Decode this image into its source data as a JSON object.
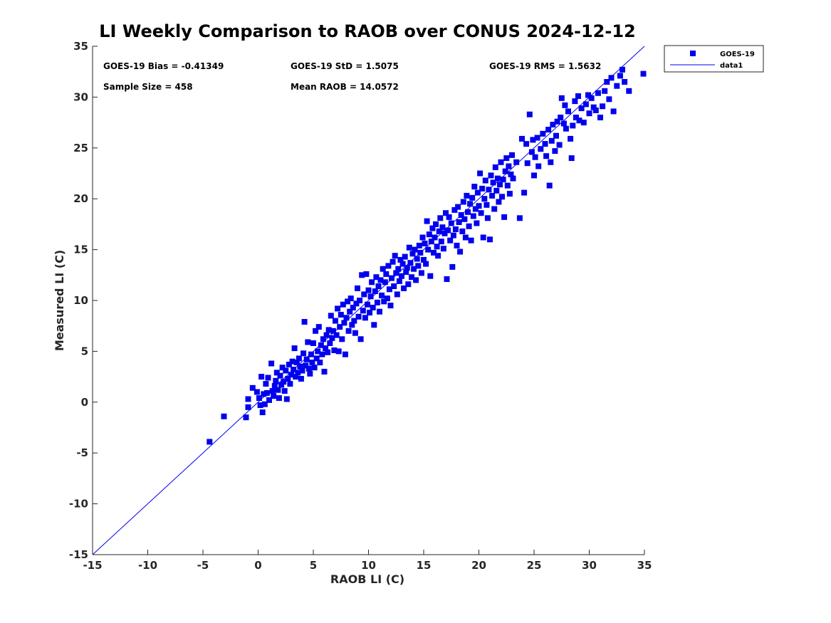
{
  "chart_data": {
    "type": "scatter",
    "title": "LI Weekly Comparison to RAOB over CONUS 2024-12-12",
    "xlabel": "RAOB LI (C)",
    "ylabel": "Measured LI (C)",
    "xlim": [
      -15,
      35
    ],
    "ylim": [
      -15,
      35
    ],
    "xticks": [
      -15,
      -10,
      -5,
      0,
      5,
      10,
      15,
      20,
      25,
      30,
      35
    ],
    "yticks": [
      -15,
      -10,
      -5,
      0,
      5,
      10,
      15,
      20,
      25,
      30,
      35
    ],
    "grid": false,
    "legend_position": "outside-top-right",
    "stats": {
      "bias": "GOES-19 Bias = -0.41349",
      "std": "GOES-19 StD = 1.5075",
      "rms": "GOES-19 RMS = 1.5632",
      "sample_size": "Sample Size = 458",
      "mean_raob": "Mean RAOB = 14.0572"
    },
    "series": [
      {
        "name": "GOES-19",
        "marker": "square",
        "color": "#0000ee",
        "points": [
          [
            -4.4,
            -3.9
          ],
          [
            -3.1,
            -1.4
          ],
          [
            -1.1,
            -1.5
          ],
          [
            -0.9,
            -0.5
          ],
          [
            -0.9,
            0.3
          ],
          [
            -0.5,
            1.4
          ],
          [
            -0.1,
            1.0
          ],
          [
            0.1,
            0.4
          ],
          [
            0.2,
            -0.3
          ],
          [
            0.3,
            2.5
          ],
          [
            0.4,
            -1.0
          ],
          [
            0.5,
            0.8
          ],
          [
            0.6,
            -0.2
          ],
          [
            0.7,
            1.8
          ],
          [
            0.8,
            0.9
          ],
          [
            0.9,
            2.4
          ],
          [
            1.0,
            0.2
          ],
          [
            1.2,
            3.8
          ],
          [
            1.3,
            1.1
          ],
          [
            1.4,
            0.6
          ],
          [
            1.5,
            1.6
          ],
          [
            1.6,
            2.1
          ],
          [
            1.7,
            2.9
          ],
          [
            1.8,
            1.2
          ],
          [
            1.9,
            0.4
          ],
          [
            2.0,
            2.6
          ],
          [
            2.1,
            1.7
          ],
          [
            2.2,
            3.4
          ],
          [
            2.3,
            2.0
          ],
          [
            2.4,
            1.1
          ],
          [
            2.5,
            3.1
          ],
          [
            2.6,
            0.3
          ],
          [
            2.7,
            2.3
          ],
          [
            2.8,
            3.7
          ],
          [
            2.9,
            1.8
          ],
          [
            3.0,
            2.7
          ],
          [
            3.1,
            4.0
          ],
          [
            3.2,
            3.2
          ],
          [
            3.3,
            5.3
          ],
          [
            3.4,
            2.5
          ],
          [
            3.5,
            3.9
          ],
          [
            3.6,
            2.9
          ],
          [
            3.7,
            4.3
          ],
          [
            3.8,
            3.5
          ],
          [
            3.9,
            2.3
          ],
          [
            4.0,
            3.1
          ],
          [
            4.1,
            4.8
          ],
          [
            4.2,
            7.9
          ],
          [
            4.3,
            3.6
          ],
          [
            4.4,
            4.2
          ],
          [
            4.5,
            5.9
          ],
          [
            4.6,
            3.3
          ],
          [
            4.7,
            2.8
          ],
          [
            4.8,
            4.7
          ],
          [
            4.9,
            3.9
          ],
          [
            5.0,
            5.8
          ],
          [
            5.1,
            3.4
          ],
          [
            5.2,
            7.0
          ],
          [
            5.3,
            4.3
          ],
          [
            5.4,
            5.0
          ],
          [
            5.5,
            7.4
          ],
          [
            5.6,
            3.9
          ],
          [
            5.7,
            5.6
          ],
          [
            5.8,
            4.7
          ],
          [
            5.9,
            6.2
          ],
          [
            6.0,
            3.0
          ],
          [
            6.1,
            5.3
          ],
          [
            6.2,
            6.6
          ],
          [
            6.3,
            4.9
          ],
          [
            6.4,
            7.1
          ],
          [
            6.5,
            5.8
          ],
          [
            6.6,
            8.5
          ],
          [
            6.7,
            6.3
          ],
          [
            6.8,
            7.0
          ],
          [
            6.9,
            5.1
          ],
          [
            7.0,
            8.0
          ],
          [
            7.1,
            6.6
          ],
          [
            7.2,
            9.2
          ],
          [
            7.3,
            5.0
          ],
          [
            7.4,
            7.4
          ],
          [
            7.5,
            8.6
          ],
          [
            7.6,
            6.2
          ],
          [
            7.7,
            9.6
          ],
          [
            7.8,
            7.8
          ],
          [
            7.9,
            4.7
          ],
          [
            8.0,
            8.3
          ],
          [
            8.1,
            9.9
          ],
          [
            8.2,
            7.0
          ],
          [
            8.3,
            8.9
          ],
          [
            8.4,
            10.2
          ],
          [
            8.5,
            7.6
          ],
          [
            8.6,
            9.3
          ],
          [
            8.7,
            8.0
          ],
          [
            8.8,
            6.8
          ],
          [
            8.9,
            9.7
          ],
          [
            9.0,
            11.2
          ],
          [
            9.1,
            8.4
          ],
          [
            9.2,
            10.0
          ],
          [
            9.3,
            6.2
          ],
          [
            9.4,
            12.5
          ],
          [
            9.5,
            9.0
          ],
          [
            9.6,
            10.6
          ],
          [
            9.7,
            8.3
          ],
          [
            9.8,
            12.6
          ],
          [
            9.9,
            9.6
          ],
          [
            10.0,
            11.0
          ],
          [
            10.1,
            8.8
          ],
          [
            10.2,
            10.4
          ],
          [
            10.3,
            11.8
          ],
          [
            10.4,
            9.3
          ],
          [
            10.5,
            7.6
          ],
          [
            10.6,
            10.9
          ],
          [
            10.7,
            12.3
          ],
          [
            10.8,
            9.8
          ],
          [
            10.9,
            11.4
          ],
          [
            11.0,
            8.9
          ],
          [
            11.1,
            12.0
          ],
          [
            11.2,
            10.5
          ],
          [
            11.3,
            13.1
          ],
          [
            11.4,
            9.9
          ],
          [
            11.5,
            11.8
          ],
          [
            11.6,
            12.6
          ],
          [
            11.7,
            10.2
          ],
          [
            11.8,
            13.4
          ],
          [
            11.9,
            11.1
          ],
          [
            12.0,
            9.5
          ],
          [
            12.1,
            12.2
          ],
          [
            12.2,
            13.8
          ],
          [
            12.3,
            11.4
          ],
          [
            12.4,
            14.4
          ],
          [
            12.5,
            12.7
          ],
          [
            12.6,
            10.6
          ],
          [
            12.7,
            13.1
          ],
          [
            12.8,
            11.9
          ],
          [
            12.9,
            14.0
          ],
          [
            13.0,
            12.4
          ],
          [
            13.1,
            13.6
          ],
          [
            13.2,
            11.2
          ],
          [
            13.3,
            14.3
          ],
          [
            13.4,
            12.8
          ],
          [
            13.5,
            13.2
          ],
          [
            13.6,
            11.6
          ],
          [
            13.7,
            15.2
          ],
          [
            13.8,
            13.7
          ],
          [
            13.9,
            12.3
          ],
          [
            14.0,
            14.6
          ],
          [
            14.1,
            13.1
          ],
          [
            14.2,
            15.0
          ],
          [
            14.3,
            12.0
          ],
          [
            14.4,
            14.1
          ],
          [
            14.5,
            13.4
          ],
          [
            14.6,
            15.4
          ],
          [
            14.7,
            14.7
          ],
          [
            14.8,
            12.7
          ],
          [
            14.9,
            16.2
          ],
          [
            15.0,
            14.0
          ],
          [
            15.1,
            15.6
          ],
          [
            15.2,
            13.6
          ],
          [
            15.3,
            17.8
          ],
          [
            15.4,
            15.0
          ],
          [
            15.5,
            16.5
          ],
          [
            15.6,
            12.4
          ],
          [
            15.7,
            15.8
          ],
          [
            15.8,
            17.1
          ],
          [
            15.9,
            14.7
          ],
          [
            16.0,
            16.2
          ],
          [
            16.1,
            17.5
          ],
          [
            16.2,
            15.3
          ],
          [
            16.3,
            14.4
          ],
          [
            16.4,
            16.8
          ],
          [
            16.5,
            18.1
          ],
          [
            16.6,
            15.8
          ],
          [
            16.7,
            17.2
          ],
          [
            16.8,
            15.1
          ],
          [
            16.9,
            16.6
          ],
          [
            17.0,
            18.6
          ],
          [
            17.1,
            12.1
          ],
          [
            17.2,
            16.9
          ],
          [
            17.3,
            18.2
          ],
          [
            17.4,
            15.9
          ],
          [
            17.5,
            17.6
          ],
          [
            17.6,
            13.3
          ],
          [
            17.7,
            16.4
          ],
          [
            17.8,
            18.9
          ],
          [
            17.9,
            17.0
          ],
          [
            18.0,
            15.4
          ],
          [
            18.1,
            19.2
          ],
          [
            18.2,
            17.7
          ],
          [
            18.3,
            14.8
          ],
          [
            18.4,
            18.4
          ],
          [
            18.5,
            16.8
          ],
          [
            18.6,
            19.7
          ],
          [
            18.7,
            18.0
          ],
          [
            18.8,
            16.2
          ],
          [
            18.9,
            20.3
          ],
          [
            19.0,
            18.7
          ],
          [
            19.1,
            17.3
          ],
          [
            19.2,
            19.5
          ],
          [
            19.3,
            15.9
          ],
          [
            19.4,
            20.1
          ],
          [
            19.5,
            18.3
          ],
          [
            19.6,
            21.2
          ],
          [
            19.7,
            19.0
          ],
          [
            19.8,
            17.6
          ],
          [
            19.9,
            20.6
          ],
          [
            20.0,
            19.3
          ],
          [
            20.1,
            22.5
          ],
          [
            20.2,
            18.6
          ],
          [
            20.3,
            21.0
          ],
          [
            20.4,
            16.2
          ],
          [
            20.5,
            20.0
          ],
          [
            20.6,
            21.8
          ],
          [
            20.7,
            19.4
          ],
          [
            20.8,
            18.1
          ],
          [
            20.9,
            20.9
          ],
          [
            21.0,
            16.0
          ],
          [
            21.1,
            22.3
          ],
          [
            21.2,
            20.3
          ],
          [
            21.3,
            21.6
          ],
          [
            21.4,
            19.0
          ],
          [
            21.5,
            23.1
          ],
          [
            21.6,
            20.8
          ],
          [
            21.7,
            22.0
          ],
          [
            21.8,
            19.7
          ],
          [
            21.9,
            21.4
          ],
          [
            22.0,
            23.6
          ],
          [
            22.1,
            20.2
          ],
          [
            22.2,
            21.9
          ],
          [
            22.3,
            18.2
          ],
          [
            22.4,
            22.7
          ],
          [
            22.5,
            24.0
          ],
          [
            22.6,
            21.3
          ],
          [
            22.7,
            23.2
          ],
          [
            22.8,
            20.5
          ],
          [
            22.9,
            22.4
          ],
          [
            23.0,
            24.3
          ],
          [
            23.1,
            22.0
          ],
          [
            23.4,
            23.6
          ],
          [
            23.7,
            18.1
          ],
          [
            23.9,
            25.9
          ],
          [
            24.1,
            20.6
          ],
          [
            24.3,
            25.4
          ],
          [
            24.4,
            23.5
          ],
          [
            24.6,
            28.3
          ],
          [
            24.8,
            24.6
          ],
          [
            24.9,
            25.8
          ],
          [
            25.0,
            22.3
          ],
          [
            25.1,
            24.1
          ],
          [
            25.3,
            26.0
          ],
          [
            25.4,
            23.2
          ],
          [
            25.6,
            24.9
          ],
          [
            25.8,
            26.4
          ],
          [
            26.0,
            25.4
          ],
          [
            26.1,
            24.2
          ],
          [
            26.3,
            26.8
          ],
          [
            26.4,
            21.3
          ],
          [
            26.5,
            23.6
          ],
          [
            26.6,
            25.7
          ],
          [
            26.7,
            27.3
          ],
          [
            26.9,
            24.7
          ],
          [
            27.0,
            26.2
          ],
          [
            27.1,
            27.6
          ],
          [
            27.3,
            25.3
          ],
          [
            27.4,
            28.0
          ],
          [
            27.5,
            29.9
          ],
          [
            27.7,
            27.4
          ],
          [
            27.8,
            29.2
          ],
          [
            27.9,
            26.9
          ],
          [
            28.1,
            28.6
          ],
          [
            28.3,
            25.9
          ],
          [
            28.4,
            24.0
          ],
          [
            28.5,
            27.2
          ],
          [
            28.7,
            29.6
          ],
          [
            28.8,
            28.0
          ],
          [
            29.0,
            30.1
          ],
          [
            29.1,
            27.7
          ],
          [
            29.3,
            28.9
          ],
          [
            29.5,
            27.5
          ],
          [
            29.7,
            29.3
          ],
          [
            29.9,
            30.2
          ],
          [
            30.0,
            28.4
          ],
          [
            30.2,
            29.9
          ],
          [
            30.4,
            29.0
          ],
          [
            30.6,
            28.7
          ],
          [
            30.8,
            30.4
          ],
          [
            31.0,
            28.0
          ],
          [
            31.2,
            29.1
          ],
          [
            31.4,
            30.6
          ],
          [
            31.6,
            31.5
          ],
          [
            31.8,
            29.8
          ],
          [
            32.0,
            31.9
          ],
          [
            32.2,
            28.6
          ],
          [
            32.5,
            31.1
          ],
          [
            32.8,
            32.1
          ],
          [
            33.0,
            32.7
          ],
          [
            33.2,
            31.5
          ],
          [
            33.6,
            30.6
          ],
          [
            34.9,
            32.3
          ]
        ]
      },
      {
        "name": "data1",
        "type": "line",
        "color": "#0000ee",
        "x": [
          -15,
          35
        ],
        "y": [
          -15,
          35
        ]
      }
    ]
  }
}
